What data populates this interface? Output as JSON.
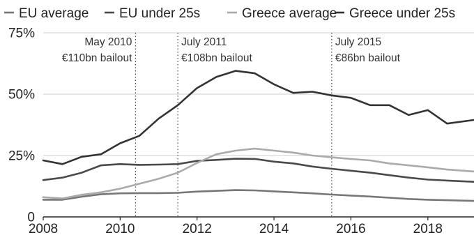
{
  "chart_data": {
    "type": "line",
    "title": "",
    "xlabel": "",
    "ylabel": "",
    "xlim": [
      2008,
      2019.2
    ],
    "ylim": [
      0,
      75
    ],
    "x_ticks": [
      2008,
      2010,
      2012,
      2014,
      2016,
      2018
    ],
    "x_tick_labels": [
      "2008",
      "2010",
      "2012",
      "2014",
      "2016",
      "2018"
    ],
    "y_ticks": [
      0,
      25,
      50,
      75
    ],
    "y_tick_labels": [
      "0",
      "25%",
      "50%",
      "75%"
    ],
    "grid": "horizontal",
    "legend_position": "top",
    "series": [
      {
        "name": "EU average",
        "color": "#777777",
        "x": [
          2008,
          2008.5,
          2009,
          2009.5,
          2010,
          2010.5,
          2011,
          2011.5,
          2012,
          2012.5,
          2013,
          2013.5,
          2014,
          2014.5,
          2015,
          2015.5,
          2016,
          2016.5,
          2017,
          2017.5,
          2018,
          2018.5,
          2019.2
        ],
        "values": [
          7,
          7,
          8.2,
          9.2,
          9.6,
          9.7,
          9.7,
          9.8,
          10.3,
          10.6,
          10.9,
          10.8,
          10.4,
          10.0,
          9.6,
          9.1,
          8.7,
          8.3,
          7.8,
          7.3,
          7.0,
          6.8,
          6.5
        ]
      },
      {
        "name": "EU under 25s",
        "color": "#4a4a4a",
        "x": [
          2008,
          2008.5,
          2009,
          2009.5,
          2010,
          2010.5,
          2011,
          2011.5,
          2012,
          2012.5,
          2013,
          2013.5,
          2014,
          2014.5,
          2015,
          2015.5,
          2016,
          2016.5,
          2017,
          2017.5,
          2018,
          2018.5,
          2019.2
        ],
        "values": [
          15,
          16,
          18,
          21,
          21.5,
          21.2,
          21.3,
          21.5,
          22.8,
          23.2,
          23.7,
          23.6,
          22.5,
          21.8,
          20.5,
          19.6,
          18.8,
          18.0,
          17.0,
          16.0,
          15.2,
          14.8,
          14.3
        ]
      },
      {
        "name": "Greece average",
        "color": "#aaaaaa",
        "x": [
          2008,
          2008.5,
          2009,
          2009.5,
          2010,
          2010.5,
          2011,
          2011.5,
          2012,
          2012.5,
          2013,
          2013.5,
          2014,
          2014.5,
          2015,
          2015.5,
          2016,
          2016.5,
          2017,
          2017.5,
          2018,
          2018.5,
          2019.2
        ],
        "values": [
          8,
          7.5,
          9,
          10,
          11.5,
          13.5,
          15.5,
          18,
          22,
          25.5,
          27,
          27.8,
          27,
          26.2,
          25,
          24.3,
          23.6,
          23,
          21.8,
          21,
          20.2,
          19.3,
          18.5
        ]
      },
      {
        "name": "Greece under 25s",
        "color": "#333333",
        "x": [
          2008,
          2008.5,
          2009,
          2009.5,
          2010,
          2010.5,
          2011,
          2011.5,
          2012,
          2012.5,
          2013,
          2013.5,
          2014,
          2014.5,
          2015,
          2015.5,
          2016,
          2016.5,
          2017,
          2017.5,
          2018,
          2018.5,
          2019.2
        ],
        "values": [
          23,
          21.5,
          24.5,
          25.5,
          30,
          33,
          40,
          45.5,
          52.5,
          57,
          59.5,
          58.5,
          54,
          50.5,
          51,
          49.5,
          48.5,
          45.5,
          45.5,
          41.5,
          43.5,
          38,
          39.5
        ]
      }
    ],
    "annotations": [
      {
        "x": 2010.4,
        "line1": "May 2010",
        "line2": "€110bn bailout",
        "align": "right"
      },
      {
        "x": 2011.5,
        "line1": "July 2011",
        "line2": "€108bn bailout",
        "align": "left"
      },
      {
        "x": 2015.5,
        "line1": "July 2015",
        "line2": "€86bn bailout",
        "align": "left"
      }
    ]
  }
}
